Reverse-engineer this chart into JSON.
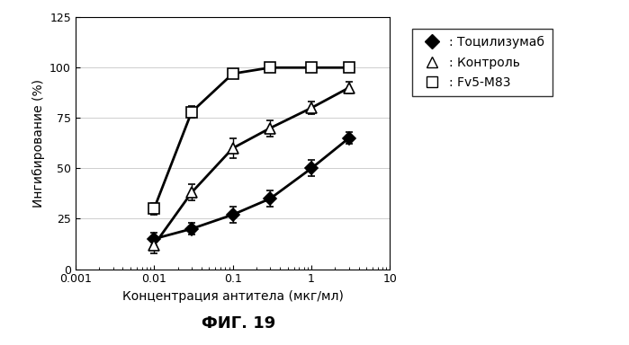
{
  "xlabel": "Концентрация антитела (мкг/мл)",
  "ylabel": "Ингибирование (%)",
  "fig_label": "ФИГ. 19",
  "xlim": [
    0.001,
    10
  ],
  "ylim": [
    0,
    125
  ],
  "yticks": [
    0,
    25,
    50,
    75,
    100,
    125
  ],
  "xticks": [
    0.001,
    0.01,
    0.1,
    1,
    10
  ],
  "xtick_labels": [
    "0.001",
    "0.01",
    "0.1",
    "1",
    "10"
  ],
  "series": [
    {
      "label": ": Тоцилизумаб",
      "x": [
        0.01,
        0.03,
        0.1,
        0.3,
        1.0,
        3.0
      ],
      "y": [
        15,
        20,
        27,
        35,
        50,
        65
      ],
      "yerr": [
        3,
        3,
        4,
        4,
        4,
        3
      ],
      "marker": "D",
      "markersize": 7,
      "color": "#000000",
      "markerfacecolor": "#000000",
      "linewidth": 2.0
    },
    {
      "label": ": Контроль",
      "x": [
        0.01,
        0.03,
        0.1,
        0.3,
        1.0,
        3.0
      ],
      "y": [
        12,
        38,
        60,
        70,
        80,
        90
      ],
      "yerr": [
        4,
        4,
        5,
        4,
        3,
        3
      ],
      "marker": "^",
      "markersize": 9,
      "color": "#000000",
      "markerfacecolor": "#ffffff",
      "linewidth": 2.0
    },
    {
      "label": ": Fv5-M83",
      "x": [
        0.01,
        0.03,
        0.1,
        0.3,
        1.0,
        3.0
      ],
      "y": [
        30,
        78,
        97,
        100,
        100,
        100
      ],
      "yerr": [
        3,
        3,
        2,
        1,
        1,
        1
      ],
      "marker": "s",
      "markersize": 9,
      "color": "#000000",
      "markerfacecolor": "#ffffff",
      "linewidth": 2.0
    }
  ],
  "background_color": "#ffffff"
}
